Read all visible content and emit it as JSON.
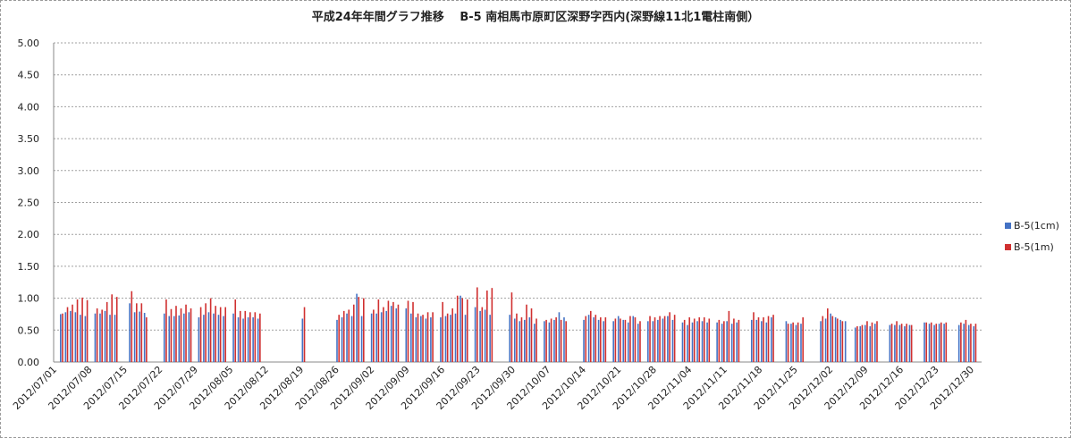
{
  "chart_data": {
    "type": "bar",
    "title": "平成24年年間グラフ推移　 B-5 南相馬市原町区深野字西内(深野線11北1電柱南側）",
    "xlabel": "",
    "ylabel": "",
    "ylim": [
      0,
      5
    ],
    "yticks": [
      "5.00",
      "4.50",
      "4.00",
      "3.50",
      "3.00",
      "2.50",
      "2.00",
      "1.50",
      "1.00",
      "0.50",
      "0.00"
    ],
    "x_tick_labels": [
      "2012/07/01",
      "2012/07/08",
      "2012/07/15",
      "2012/07/22",
      "2012/07/29",
      "2012/08/05",
      "2012/08/12",
      "2012/08/19",
      "2012/08/26",
      "2012/09/02",
      "2012/09/09",
      "2012/09/16",
      "2012/09/23",
      "2012/09/30",
      "2012/10/07",
      "2012/10/14",
      "2012/10/21",
      "2012/10/28",
      "2012/11/04",
      "2012/11/11",
      "2012/11/18",
      "2012/11/25",
      "2012/12/02",
      "2012/12/09",
      "2012/12/16",
      "2012/12/23",
      "2012/12/30"
    ],
    "grid": true,
    "legend_position": "right",
    "series": [
      {
        "name": "B-5(1cm)",
        "color": "#4472C4",
        "values": [
          0.75,
          0.78,
          0.8,
          0.78,
          0.74,
          0.72,
          null,
          0.76,
          0.76,
          0.8,
          0.74,
          0.74,
          null,
          null,
          0.92,
          0.78,
          0.79,
          0.77,
          null,
          null,
          null,
          0.76,
          0.72,
          0.72,
          0.73,
          0.76,
          0.78,
          null,
          0.7,
          0.74,
          0.78,
          0.76,
          0.74,
          0.72,
          null,
          0.76,
          0.7,
          0.68,
          0.7,
          0.7,
          0.68,
          null,
          null,
          null,
          null,
          null,
          null,
          null,
          null,
          0.68,
          null,
          null,
          null,
          null,
          null,
          null,
          0.66,
          0.7,
          0.76,
          0.72,
          1.07,
          0.72,
          null,
          0.76,
          0.76,
          0.78,
          0.8,
          0.88,
          0.84,
          null,
          0.84,
          0.76,
          0.7,
          0.72,
          0.68,
          0.7,
          null,
          0.7,
          0.72,
          0.74,
          0.76,
          1.04,
          0.74,
          null,
          0.86,
          0.8,
          0.82,
          0.74,
          null,
          null,
          null,
          0.74,
          0.68,
          0.64,
          0.66,
          0.7,
          0.6,
          null,
          0.64,
          0.62,
          0.66,
          0.78,
          0.7,
          null,
          null,
          null,
          0.66,
          0.74,
          0.7,
          0.66,
          0.64,
          null,
          0.64,
          0.72,
          0.66,
          0.62,
          0.72,
          0.6,
          null,
          0.64,
          0.64,
          0.66,
          0.68,
          0.72,
          0.66,
          null,
          0.62,
          0.58,
          0.62,
          0.64,
          0.64,
          0.62,
          null,
          0.62,
          0.6,
          0.64,
          0.6,
          0.62,
          null,
          null,
          0.66,
          0.66,
          0.64,
          0.62,
          0.7,
          null,
          null,
          0.64,
          0.6,
          0.58,
          0.6,
          null,
          null,
          null,
          0.64,
          0.68,
          0.76,
          0.7,
          0.66,
          0.64,
          null,
          0.54,
          0.56,
          0.58,
          0.56,
          0.6,
          null,
          null,
          0.58,
          0.58,
          0.58,
          0.56,
          0.58,
          null,
          null,
          0.62,
          0.6,
          0.58,
          0.6,
          0.6,
          null,
          null,
          0.58,
          0.6,
          0.58,
          0.56,
          null,
          null
        ]
      },
      {
        "name": "B-5(1m)",
        "color": "#D03030",
        "values": [
          0.76,
          0.86,
          0.9,
          0.98,
          1.01,
          0.97,
          null,
          0.84,
          0.82,
          0.94,
          1.06,
          1.02,
          null,
          null,
          1.11,
          0.92,
          0.92,
          0.7,
          null,
          null,
          null,
          0.98,
          0.83,
          0.88,
          0.84,
          0.9,
          0.84,
          null,
          0.86,
          0.92,
          1.0,
          0.88,
          0.86,
          0.86,
          null,
          0.98,
          0.8,
          0.8,
          0.78,
          0.78,
          0.76,
          null,
          null,
          null,
          null,
          null,
          null,
          null,
          null,
          0.86,
          null,
          null,
          null,
          null,
          null,
          null,
          0.74,
          0.8,
          0.82,
          0.9,
          1.02,
          1.0,
          null,
          0.82,
          0.98,
          0.86,
          0.96,
          0.94,
          0.9,
          null,
          0.96,
          0.94,
          0.76,
          0.74,
          0.78,
          0.78,
          null,
          0.94,
          0.76,
          0.84,
          1.04,
          1.0,
          0.98,
          null,
          1.17,
          0.86,
          1.12,
          1.16,
          null,
          null,
          null,
          1.09,
          0.76,
          0.7,
          0.9,
          0.84,
          0.68,
          null,
          0.66,
          0.68,
          0.7,
          0.66,
          0.64,
          null,
          null,
          null,
          0.72,
          0.8,
          0.74,
          0.7,
          0.7,
          null,
          0.68,
          0.68,
          0.66,
          0.72,
          0.7,
          0.64,
          null,
          0.72,
          0.7,
          0.72,
          0.72,
          0.78,
          0.74,
          null,
          0.66,
          0.7,
          0.68,
          0.7,
          0.7,
          0.68,
          null,
          0.66,
          0.64,
          0.8,
          0.68,
          0.66,
          null,
          null,
          0.78,
          0.7,
          0.7,
          0.72,
          0.74,
          null,
          null,
          0.6,
          0.62,
          0.62,
          0.7,
          null,
          null,
          null,
          0.72,
          0.84,
          0.72,
          0.68,
          0.64,
          null,
          null,
          0.56,
          0.58,
          0.64,
          0.62,
          0.64,
          null,
          null,
          0.6,
          0.64,
          0.6,
          0.6,
          0.58,
          null,
          null,
          0.62,
          0.62,
          0.6,
          0.62,
          0.62,
          null,
          null,
          0.62,
          0.66,
          0.6,
          0.6,
          null,
          null
        ]
      }
    ]
  }
}
